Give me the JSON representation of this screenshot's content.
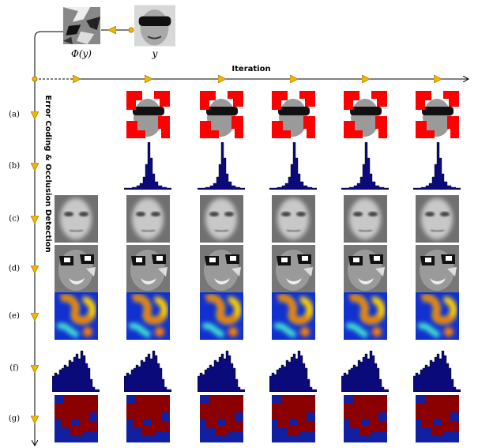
{
  "figure": {
    "phi_label": "Φ(y)",
    "y_label": "y",
    "iteration_label": "Iteration",
    "vertical_label": "Error Coding & Occlusion Detection",
    "row_labels": [
      "(a)",
      "(b)",
      "(c)",
      "(d)",
      "(e)",
      "(f)",
      "(g)"
    ]
  }
}
